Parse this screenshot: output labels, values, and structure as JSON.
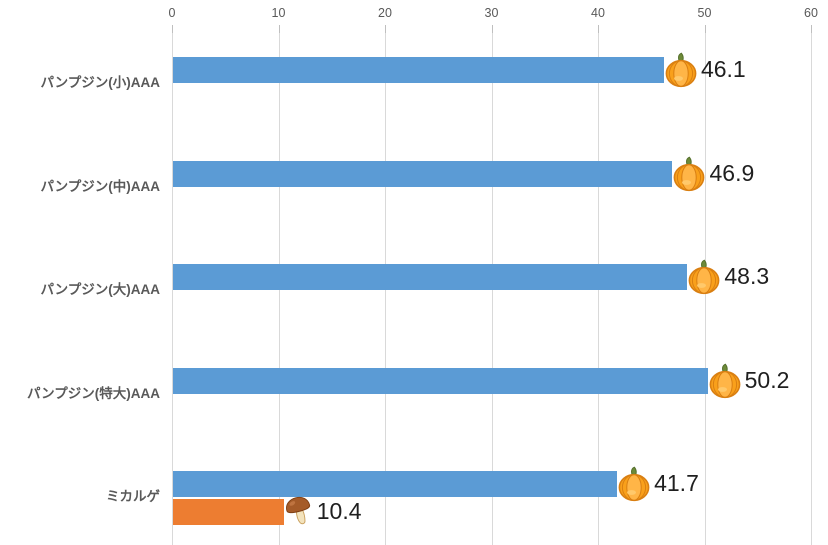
{
  "chart_data": {
    "type": "bar",
    "orientation": "horizontal",
    "title": "",
    "xlabel": "",
    "ylabel": "",
    "xlim": [
      0,
      60
    ],
    "x_tick_values": [
      0,
      10,
      20,
      30,
      40,
      50,
      60
    ],
    "x_tick_labels": [
      "0",
      "10",
      "20",
      "30",
      "40",
      "50",
      "60"
    ],
    "grid": true,
    "legend": "none",
    "categories": [
      "パンプジン(小)AAA",
      "パンプジン(中)AAA",
      "パンプジン(大)AAA",
      "パンプジン(特大)AAA",
      "ミカルゲ"
    ],
    "series": [
      {
        "name": "series-1",
        "color": "#5b9bd5",
        "marker": "pumpkin-icon",
        "values": [
          46.1,
          46.9,
          48.3,
          50.2,
          41.7
        ],
        "value_labels": [
          "46.1",
          "46.9",
          "48.3",
          "50.2",
          "41.7"
        ]
      },
      {
        "name": "series-2",
        "color": "#ed7d31",
        "marker": "mushroom-icon",
        "values": [
          null,
          null,
          null,
          null,
          10.4
        ],
        "value_labels": [
          null,
          null,
          null,
          null,
          "10.4"
        ]
      }
    ]
  },
  "colors": {
    "bar_blue": "#5b9bd5",
    "bar_orange": "#ed7d31",
    "gridline": "#d9d9d9",
    "axis_text": "#595959",
    "value_text": "#1f1f1f",
    "background": "#ffffff"
  }
}
